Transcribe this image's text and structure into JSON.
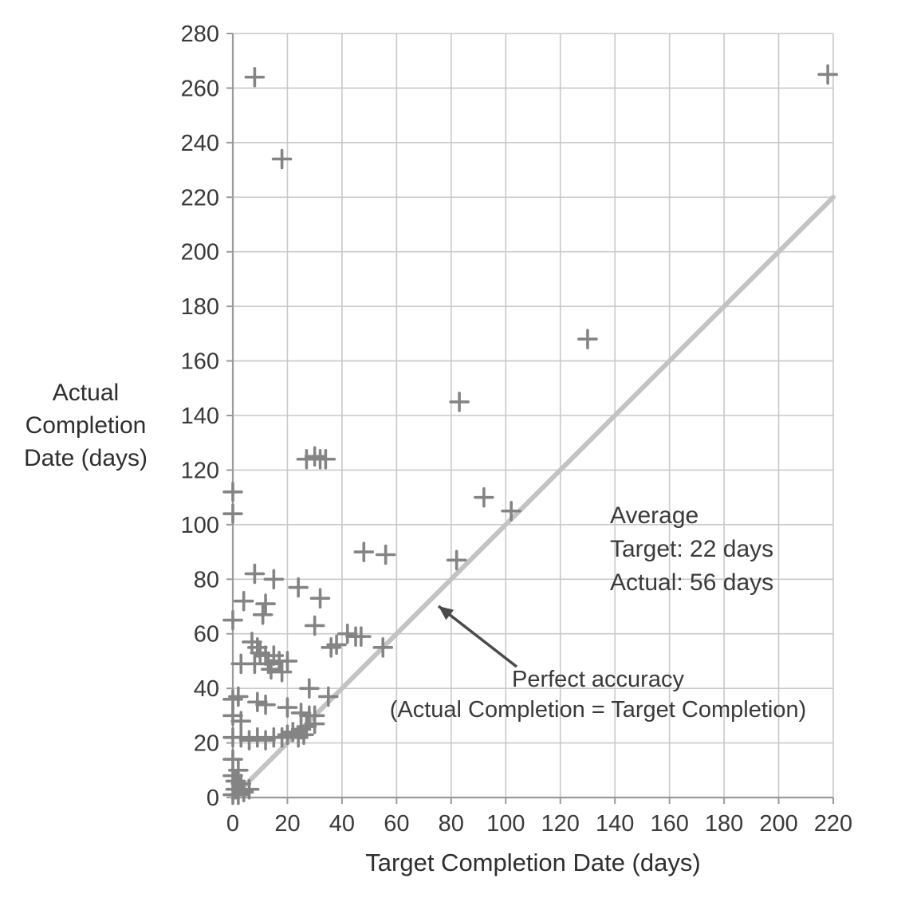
{
  "colors": {
    "grid": "#c9c9c9",
    "axis": "#9a9a9a",
    "reference_line": "#c3c3c3",
    "marker": "#848484",
    "text": "#3a3a3a",
    "arrow": "#4a4a4a"
  },
  "chart_data": {
    "type": "scatter",
    "marker": "plus",
    "grid": true,
    "xlabel": "Target Completion Date (days)",
    "ylabel_lines": [
      "Actual",
      "Completion",
      "Date (days)"
    ],
    "xlim": [
      0,
      220
    ],
    "ylim": [
      0,
      280
    ],
    "x_ticks": [
      0,
      20,
      40,
      60,
      80,
      100,
      120,
      140,
      160,
      180,
      200,
      220
    ],
    "y_ticks": [
      0,
      20,
      40,
      60,
      80,
      100,
      120,
      140,
      160,
      180,
      200,
      220,
      240,
      260,
      280
    ],
    "reference_line": {
      "from": [
        0,
        0
      ],
      "to": [
        220,
        220
      ],
      "label": "Perfect accuracy",
      "sublabel": "(Actual Completion = Target Completion)"
    },
    "annotation": {
      "lines": [
        "Average",
        "Target: 22 days",
        "Actual: 56 days"
      ]
    },
    "arrow": {
      "from": [
        648,
        836
      ],
      "to": [
        550,
        760
      ]
    },
    "points": [
      [
        8,
        264
      ],
      [
        18,
        234
      ],
      [
        218,
        265
      ],
      [
        130,
        168
      ],
      [
        83,
        145
      ],
      [
        27,
        124
      ],
      [
        30,
        125
      ],
      [
        32,
        124
      ],
      [
        34,
        124
      ],
      [
        92,
        110
      ],
      [
        102,
        105
      ],
      [
        0,
        112
      ],
      [
        0,
        104
      ],
      [
        48,
        90
      ],
      [
        56,
        89
      ],
      [
        82,
        87
      ],
      [
        8,
        82
      ],
      [
        15,
        80
      ],
      [
        24,
        77
      ],
      [
        4,
        72
      ],
      [
        12,
        71
      ],
      [
        32,
        73
      ],
      [
        11,
        67
      ],
      [
        0,
        65
      ],
      [
        30,
        63
      ],
      [
        42,
        60
      ],
      [
        45,
        59
      ],
      [
        47,
        59
      ],
      [
        36,
        55
      ],
      [
        38,
        56
      ],
      [
        55,
        55
      ],
      [
        7,
        57
      ],
      [
        9,
        55
      ],
      [
        10,
        53
      ],
      [
        12,
        52
      ],
      [
        3,
        49
      ],
      [
        8,
        49
      ],
      [
        13,
        49
      ],
      [
        15,
        52
      ],
      [
        17,
        50
      ],
      [
        20,
        50
      ],
      [
        14,
        47
      ],
      [
        18,
        46
      ],
      [
        0,
        36
      ],
      [
        2,
        37
      ],
      [
        9,
        35
      ],
      [
        12,
        34
      ],
      [
        20,
        33
      ],
      [
        28,
        40
      ],
      [
        35,
        37
      ],
      [
        25,
        31
      ],
      [
        28,
        30
      ],
      [
        30,
        30
      ],
      [
        0,
        30
      ],
      [
        3,
        28
      ],
      [
        0,
        22
      ],
      [
        3,
        22
      ],
      [
        6,
        21
      ],
      [
        9,
        22
      ],
      [
        12,
        21
      ],
      [
        15,
        22
      ],
      [
        18,
        22
      ],
      [
        20,
        23
      ],
      [
        22,
        24
      ],
      [
        25,
        25
      ],
      [
        27,
        26
      ],
      [
        30,
        27
      ],
      [
        24,
        22
      ],
      [
        26,
        23
      ],
      [
        0,
        14
      ],
      [
        2,
        10
      ],
      [
        0,
        8
      ],
      [
        1,
        6
      ],
      [
        3,
        5
      ],
      [
        1,
        3
      ],
      [
        0,
        1
      ],
      [
        2,
        1
      ],
      [
        4,
        2
      ],
      [
        6,
        3
      ]
    ]
  }
}
